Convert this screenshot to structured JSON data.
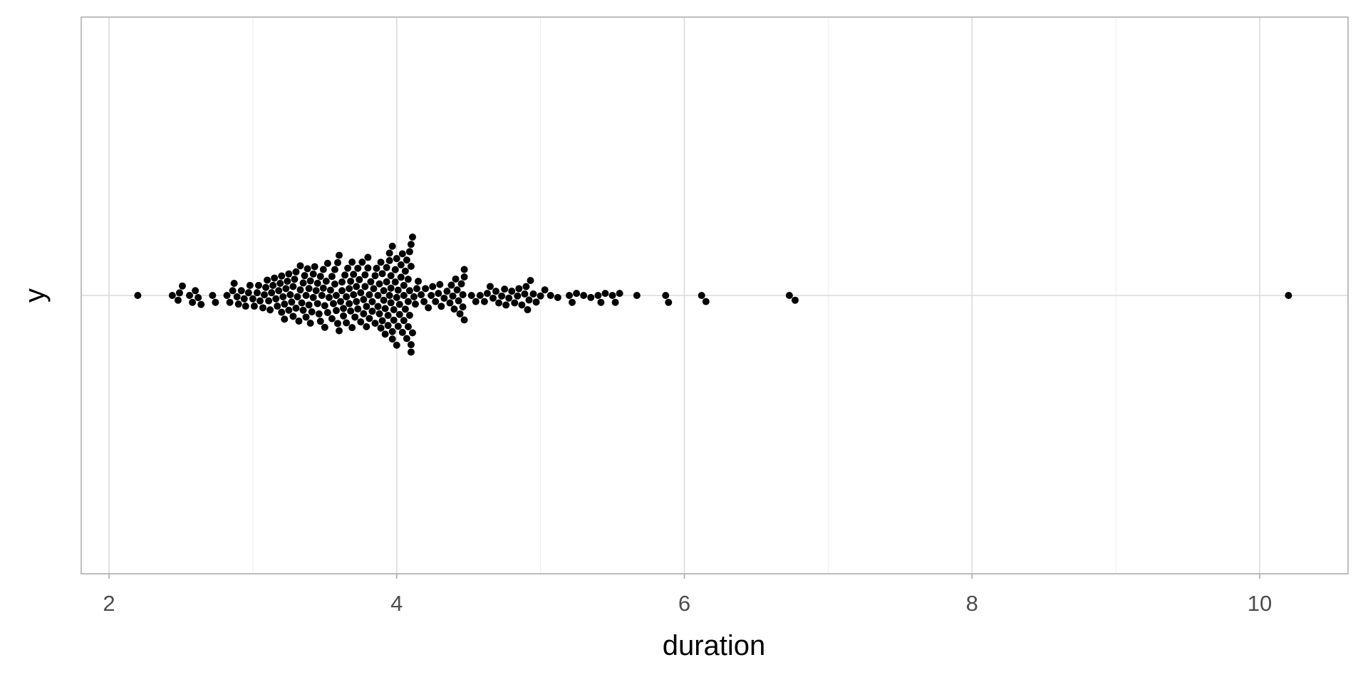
{
  "chart_data": {
    "type": "scatter",
    "subtype": "beeswarm",
    "title": "",
    "xlabel": "duration",
    "ylabel": "y",
    "xlim": [
      1.8,
      10.6
    ],
    "xticks": [
      "2",
      "4",
      "6",
      "8",
      "10"
    ],
    "grid": true,
    "point_color": "#000000",
    "values": [
      2.2,
      2.44,
      2.48,
      2.49,
      2.51,
      2.56,
      2.58,
      2.6,
      2.62,
      2.64,
      2.72,
      2.74,
      2.82,
      2.84,
      2.86,
      2.87,
      2.89,
      2.9,
      2.92,
      2.94,
      2.95,
      2.97,
      2.98,
      3.0,
      3.01,
      3.03,
      3.04,
      3.05,
      3.07,
      3.08,
      3.09,
      3.1,
      3.11,
      3.12,
      3.13,
      3.14,
      3.15,
      3.16,
      3.17,
      3.18,
      3.19,
      3.2,
      3.2,
      3.21,
      3.22,
      3.22,
      3.23,
      3.24,
      3.25,
      3.25,
      3.26,
      3.27,
      3.28,
      3.28,
      3.29,
      3.3,
      3.3,
      3.31,
      3.32,
      3.33,
      3.33,
      3.34,
      3.35,
      3.35,
      3.36,
      3.37,
      3.37,
      3.38,
      3.39,
      3.39,
      3.4,
      3.4,
      3.41,
      3.42,
      3.42,
      3.43,
      3.44,
      3.45,
      3.45,
      3.46,
      3.47,
      3.47,
      3.48,
      3.49,
      3.49,
      3.5,
      3.5,
      3.51,
      3.52,
      3.52,
      3.53,
      3.54,
      3.55,
      3.55,
      3.56,
      3.57,
      3.57,
      3.58,
      3.58,
      3.59,
      3.59,
      3.6,
      3.6,
      3.61,
      3.62,
      3.62,
      3.63,
      3.63,
      3.64,
      3.65,
      3.65,
      3.66,
      3.67,
      3.67,
      3.68,
      3.68,
      3.69,
      3.69,
      3.7,
      3.7,
      3.71,
      3.72,
      3.72,
      3.73,
      3.73,
      3.74,
      3.75,
      3.75,
      3.76,
      3.77,
      3.77,
      3.78,
      3.78,
      3.79,
      3.79,
      3.8,
      3.8,
      3.81,
      3.81,
      3.82,
      3.83,
      3.83,
      3.84,
      3.85,
      3.85,
      3.86,
      3.87,
      3.87,
      3.88,
      3.88,
      3.89,
      3.89,
      3.9,
      3.9,
      3.91,
      3.91,
      3.92,
      3.92,
      3.93,
      3.93,
      3.94,
      3.94,
      3.95,
      3.95,
      3.95,
      3.96,
      3.96,
      3.96,
      3.97,
      3.97,
      3.97,
      3.98,
      3.98,
      3.99,
      3.99,
      4.0,
      4.0,
      4.0,
      4.01,
      4.01,
      4.02,
      4.02,
      4.03,
      4.03,
      4.04,
      4.04,
      4.05,
      4.05,
      4.05,
      4.06,
      4.06,
      4.07,
      4.07,
      4.08,
      4.08,
      4.08,
      4.09,
      4.09,
      4.09,
      4.1,
      4.1,
      4.1,
      4.1,
      4.11,
      4.11,
      4.12,
      4.13,
      4.14,
      4.15,
      4.17,
      4.19,
      4.2,
      4.22,
      4.24,
      4.25,
      4.27,
      4.29,
      4.3,
      4.31,
      4.33,
      4.35,
      4.37,
      4.38,
      4.39,
      4.4,
      4.41,
      4.42,
      4.43,
      4.44,
      4.45,
      4.46,
      4.46,
      4.47,
      4.47,
      4.47,
      4.52,
      4.55,
      4.58,
      4.61,
      4.63,
      4.65,
      4.67,
      4.69,
      4.71,
      4.73,
      4.75,
      4.76,
      4.78,
      4.8,
      4.82,
      4.84,
      4.85,
      4.87,
      4.89,
      4.9,
      4.91,
      4.92,
      4.93,
      4.95,
      4.97,
      5.0,
      5.03,
      5.07,
      5.12,
      5.2,
      5.22,
      5.25,
      5.3,
      5.35,
      5.4,
      5.42,
      5.45,
      5.5,
      5.52,
      5.55,
      5.67,
      5.87,
      5.89,
      6.12,
      6.15,
      6.73,
      6.77,
      10.2
    ]
  }
}
